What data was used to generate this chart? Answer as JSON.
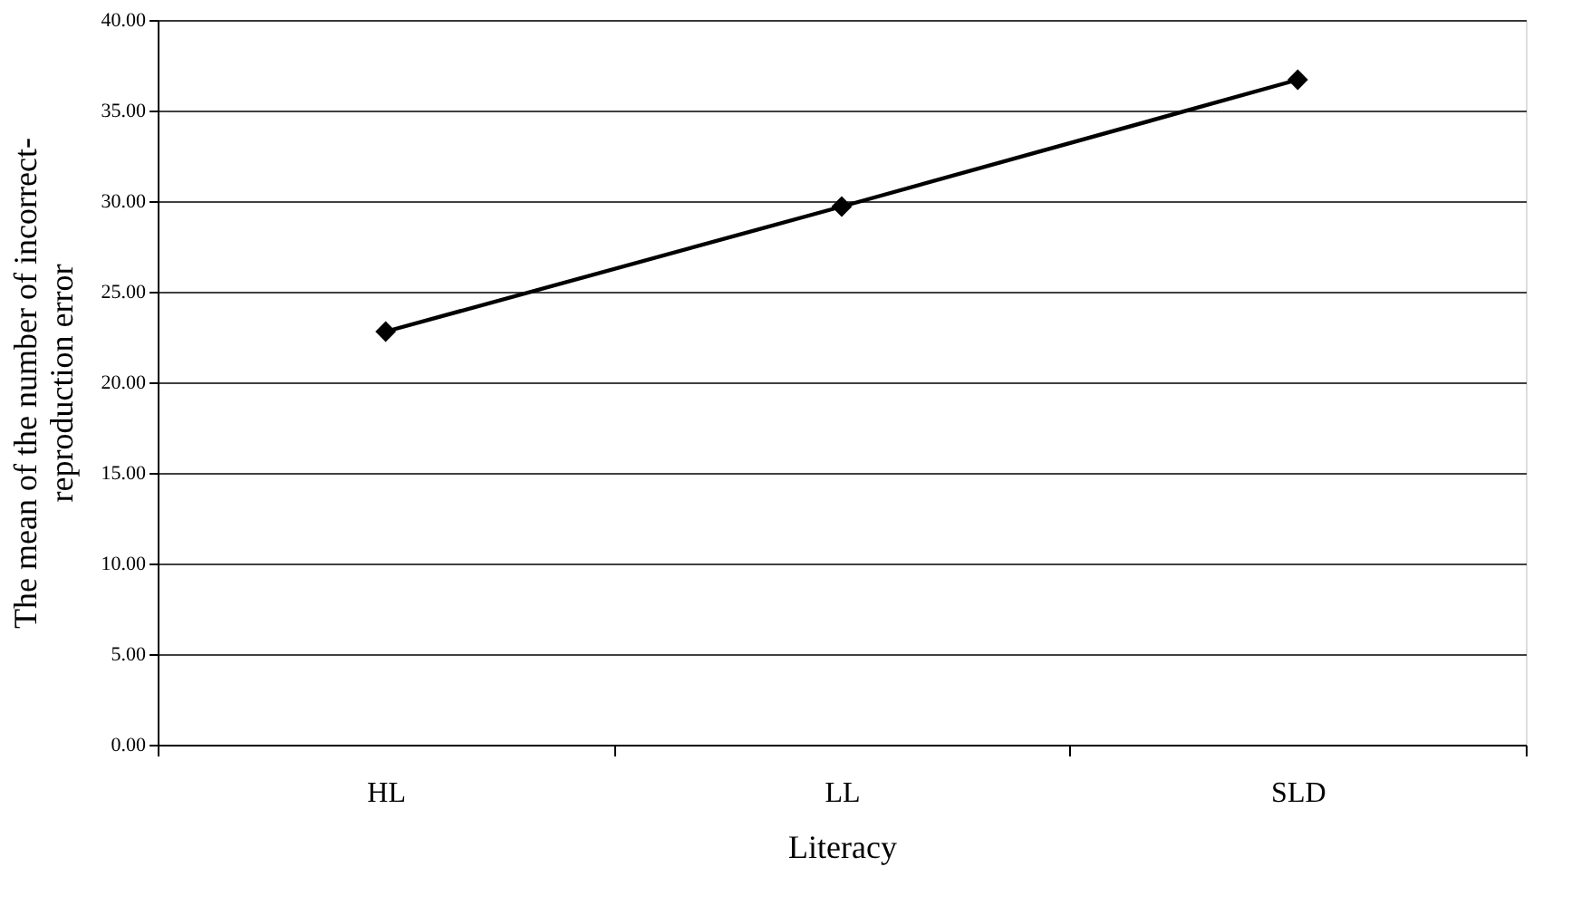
{
  "chart_data": {
    "type": "line",
    "categories": [
      "HL",
      "LL",
      "SLD"
    ],
    "series": [
      {
        "color": "#000000",
        "values": [
          22.8,
          29.7,
          36.7
        ]
      }
    ],
    "xlabel": "Literacy",
    "ylabel": "The mean of the number of incorrect-reproduction error",
    "ylim": [
      0,
      40
    ],
    "yticks": [
      {
        "value": 0,
        "label": "0.00"
      },
      {
        "value": 5,
        "label": "5.00"
      },
      {
        "value": 10,
        "label": "10.00"
      },
      {
        "value": 15,
        "label": "15.00"
      },
      {
        "value": 20,
        "label": "20.00"
      },
      {
        "value": 25,
        "label": "25.00"
      },
      {
        "value": 30,
        "label": "30.00"
      },
      {
        "value": 35,
        "label": "35.00"
      },
      {
        "value": 40,
        "label": "40.00"
      }
    ],
    "grid": "y",
    "legend": false,
    "marker": "diamond",
    "line_style": "solid"
  }
}
